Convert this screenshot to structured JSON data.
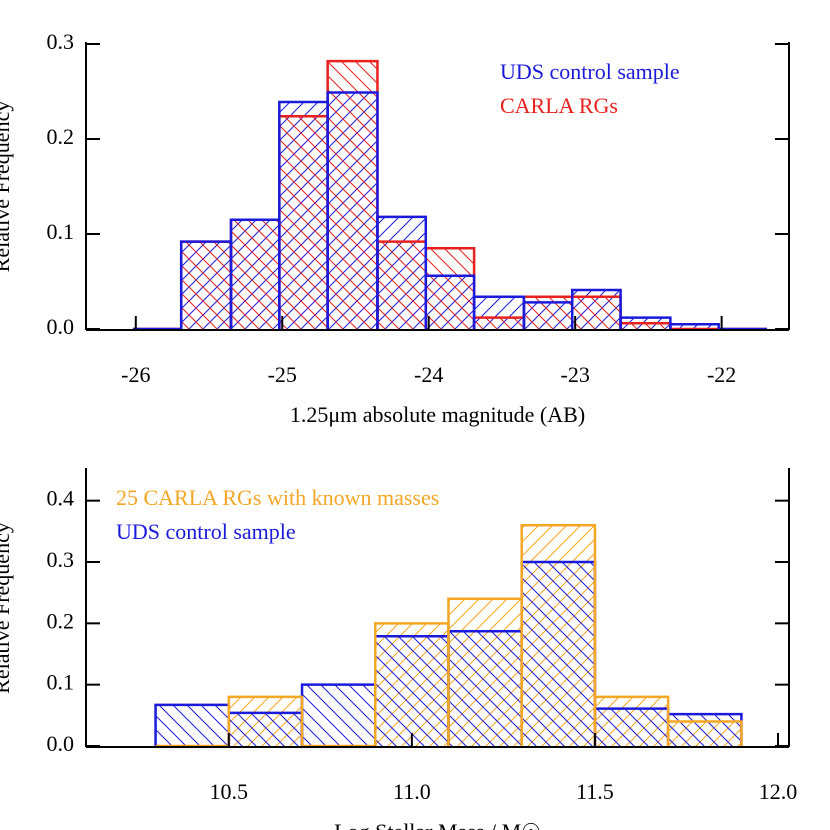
{
  "chart_data": [
    {
      "type": "histogram",
      "bins": [
        -26.02,
        -25.69,
        -25.35,
        -25.02,
        -24.69,
        -24.35,
        -24.02,
        -23.69,
        -23.35,
        -23.02,
        -22.69,
        -22.35,
        -22.02,
        -21.69
      ],
      "series": [
        {
          "name": "UDS control sample",
          "color": "#1a1adc",
          "values": [
            0,
            0.092,
            0.115,
            0.239,
            0.249,
            0.118,
            0.056,
            0.034,
            0.028,
            0.041,
            0.012,
            0.005,
            0
          ]
        },
        {
          "name": "CARLA RGs",
          "color": "#e8201e",
          "values": [
            0,
            0.092,
            0.115,
            0.224,
            0.282,
            0.092,
            0.085,
            0.012,
            0.034,
            0.034,
            0.006,
            0,
            0
          ]
        }
      ],
      "xlim": [
        -26.34,
        -21.54
      ],
      "ylim": [
        0,
        0.3
      ],
      "xticks": [
        -26,
        -25,
        -24,
        -23,
        -22
      ],
      "yticks": [
        {
          "value": 0,
          "label": "0.0"
        },
        0.1,
        0.2,
        0.3
      ],
      "x_label": "1.25μm absolute magnitude (AB)",
      "y_label": "Relative Frequency",
      "legend": "top right"
    },
    {
      "type": "histogram",
      "bins": [
        10.3,
        10.5,
        10.7,
        10.9,
        11.1,
        11.3,
        11.5,
        11.7,
        11.9
      ],
      "series": [
        {
          "name": "25 CARLA RGs with known masses",
          "color": "#f5a623",
          "values": [
            0,
            0.08,
            0,
            0.2,
            0.24,
            0.36,
            0.08,
            0.04
          ]
        },
        {
          "name": "UDS control sample",
          "color": "#1a1adc",
          "values": [
            0.067,
            0.054,
            0.1,
            0.179,
            0.187,
            0.3,
            0.061,
            0.052
          ]
        }
      ],
      "xlim": [
        10.11,
        12.03
      ],
      "ylim": [
        0,
        0.45
      ],
      "xticks": [
        10.5,
        {
          "value": 11,
          "label": "11.0"
        },
        11.5,
        {
          "value": 12,
          "label": "12.0"
        }
      ],
      "yticks": [
        {
          "value": 0,
          "label": "0.0"
        },
        0.1,
        0.2,
        0.3,
        0.4
      ],
      "x_label": "Log Stellar Mass / M☉",
      "y_label": "Relative Frequency",
      "legend": "top left"
    }
  ]
}
